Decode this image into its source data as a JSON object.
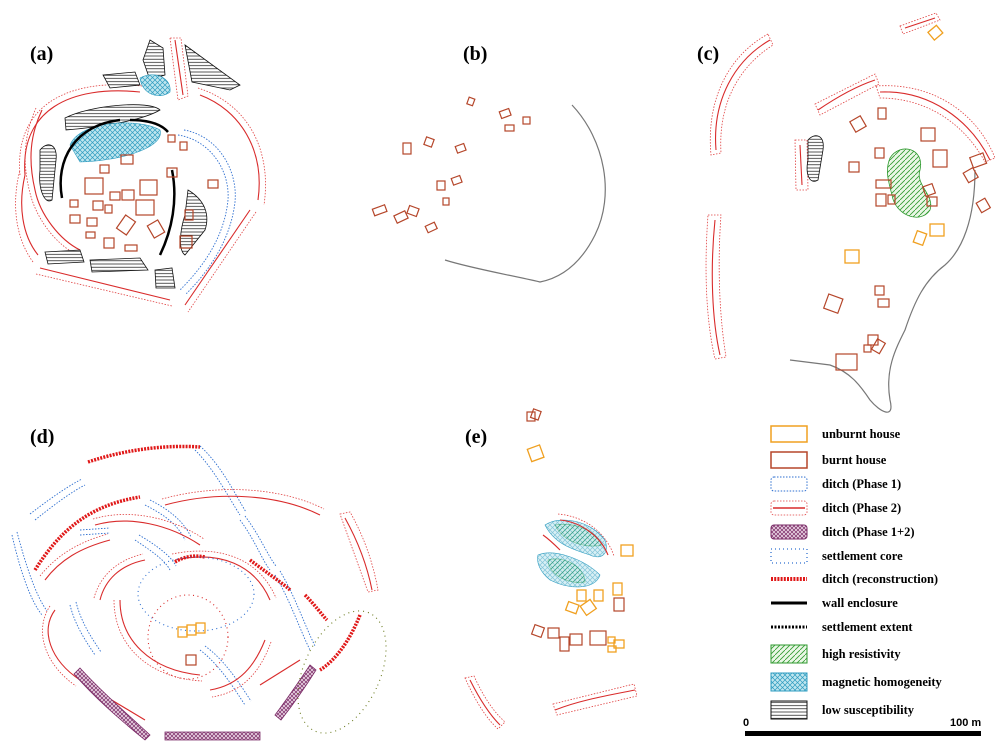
{
  "panels": {
    "a": "(a)",
    "b": "(b)",
    "c": "(c)",
    "d": "(d)",
    "e": "(e)"
  },
  "legend": {
    "items": [
      {
        "key": "unburnt",
        "label": "unburnt house"
      },
      {
        "key": "burnt",
        "label": "burnt house"
      },
      {
        "key": "ditch1",
        "label": "ditch (Phase 1)"
      },
      {
        "key": "ditch2",
        "label": "ditch (Phase 2)"
      },
      {
        "key": "ditch12",
        "label": "ditch (Phase 1+2)"
      },
      {
        "key": "core",
        "label": "settlement core"
      },
      {
        "key": "recon",
        "label": "ditch (reconstruction)"
      },
      {
        "key": "wall",
        "label": "wall enclosure"
      },
      {
        "key": "extent",
        "label": "settlement extent"
      },
      {
        "key": "resist",
        "label": "high resistivity"
      },
      {
        "key": "magnetic",
        "label": "magnetic homogeneity"
      },
      {
        "key": "lowsus",
        "label": "low susceptibility"
      }
    ]
  },
  "scale": {
    "start": "0",
    "end": "100 m"
  },
  "colors": {
    "unburnt": "#f0a020",
    "burnt": "#b5462a",
    "ditch_phase1": "#2e6fd0",
    "ditch_phase2": "#d92b2b",
    "ditch_phase12": "#8a2a6a",
    "reconstruction": "#e01818",
    "high_resistivity": "#3aa83a",
    "magnetic_homogeneity": "#3aa8c8",
    "settlement_extent": "#6a7a1e"
  }
}
